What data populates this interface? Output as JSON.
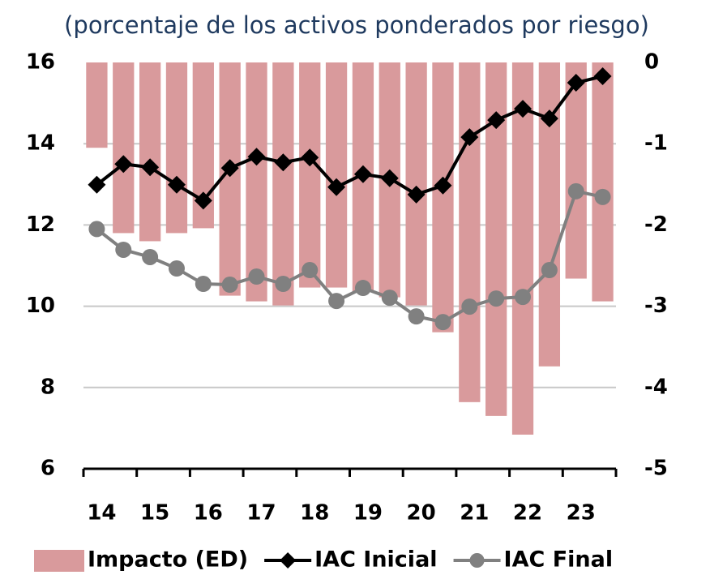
{
  "chart_data": {
    "type": "combo",
    "title": "(porcentaje de los activos ponderados por riesgo)",
    "categories": [
      "14",
      null,
      "15",
      null,
      "16",
      null,
      "17",
      null,
      "18",
      null,
      "19",
      null,
      "20",
      null,
      "21",
      null,
      "22",
      null,
      "23",
      null
    ],
    "ylim": [
      6,
      16
    ],
    "yticks": [
      6,
      8,
      10,
      12,
      14,
      16
    ],
    "y2lim": [
      -5,
      0
    ],
    "y2ticks": [
      -5,
      -4,
      -3,
      -2,
      -1,
      0
    ],
    "grid": true,
    "legend": "bottom",
    "series": [
      {
        "name": "Impacto (ED)",
        "type": "bar",
        "axis": "y2",
        "color": "#d99a9c",
        "values": [
          -1.05,
          -2.1,
          -2.2,
          -2.1,
          -2.04,
          -2.87,
          -2.94,
          -2.99,
          -2.77,
          -2.77,
          -2.82,
          -2.89,
          -2.99,
          -3.32,
          -4.18,
          -4.35,
          -4.58,
          -3.74,
          -2.66,
          -2.94
        ]
      },
      {
        "name": "IAC Inicial",
        "type": "line",
        "marker": "diamond",
        "color": "#000000",
        "values": [
          12.99,
          13.5,
          13.42,
          12.99,
          12.6,
          13.4,
          13.68,
          13.54,
          13.66,
          12.93,
          13.25,
          13.15,
          12.75,
          12.97,
          14.16,
          14.58,
          14.86,
          14.62,
          15.5,
          15.66
        ]
      },
      {
        "name": "IAC Final",
        "type": "line",
        "marker": "circle",
        "color": "#808080",
        "values": [
          11.9,
          11.39,
          11.21,
          10.93,
          10.55,
          10.53,
          10.73,
          10.55,
          10.89,
          10.13,
          10.45,
          10.21,
          9.75,
          9.61,
          9.99,
          10.19,
          10.23,
          10.89,
          12.83,
          12.69
        ]
      }
    ]
  }
}
